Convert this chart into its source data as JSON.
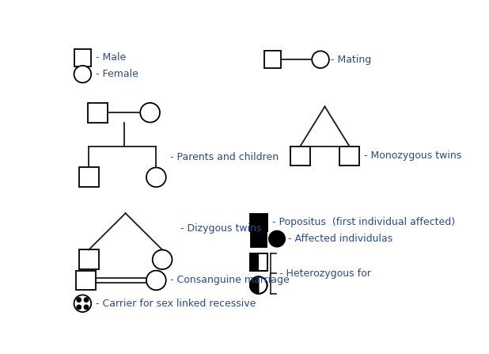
{
  "bg_color": "#ffffff",
  "text_color": "#2c4a8a",
  "symbol_color": "#1a1a1a",
  "figsize": [
    6.18,
    4.47
  ],
  "dpi": 100,
  "labels": {
    "male": "- Male",
    "female": "- Female",
    "mating": "- Mating",
    "monozygous": "- Monozygous twins",
    "parents_children": "- Parents and children",
    "dizygous": "- Dizygous twins",
    "consanguine": "- Consanguine marriage",
    "carrier": "- Carrier for sex linked recessive",
    "propostius": "- Popositus  (first individual affected)",
    "affected": "- Affected individulas",
    "heterozygous": "- Heterozygous for"
  }
}
